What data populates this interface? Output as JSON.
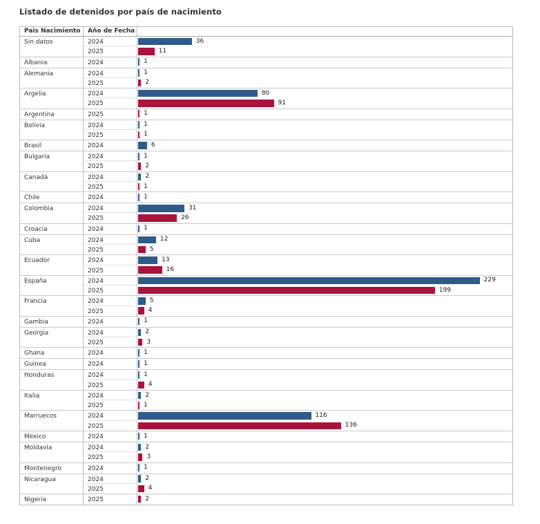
{
  "chart_data": {
    "type": "bar",
    "orientation": "horizontal",
    "title": "Listado de detenidos por país de nacimiento",
    "columns": [
      "Pais Nacimiento",
      "Año de Fecha"
    ],
    "legend": [
      "2024",
      "2025"
    ],
    "series_colors": {
      "2024": "#2e5b8a",
      "2025": "#a8143c"
    },
    "xlim": [
      0,
      250
    ],
    "grid": false,
    "value_labels": true,
    "groups": [
      {
        "country": "Sin datos",
        "rows": [
          {
            "year": "2024",
            "value": 36
          },
          {
            "year": "2025",
            "value": 11
          }
        ]
      },
      {
        "country": "Albania",
        "rows": [
          {
            "year": "2024",
            "value": 1
          }
        ]
      },
      {
        "country": "Alemania",
        "rows": [
          {
            "year": "2024",
            "value": 1
          },
          {
            "year": "2025",
            "value": 2
          }
        ]
      },
      {
        "country": "Argelia",
        "rows": [
          {
            "year": "2024",
            "value": 80
          },
          {
            "year": "2025",
            "value": 91
          }
        ]
      },
      {
        "country": "Argentina",
        "rows": [
          {
            "year": "2025",
            "value": 1
          }
        ]
      },
      {
        "country": "Bolivia",
        "rows": [
          {
            "year": "2024",
            "value": 1
          },
          {
            "year": "2025",
            "value": 1
          }
        ]
      },
      {
        "country": "Brasil",
        "rows": [
          {
            "year": "2024",
            "value": 6
          }
        ]
      },
      {
        "country": "Bulgaria",
        "rows": [
          {
            "year": "2024",
            "value": 1
          },
          {
            "year": "2025",
            "value": 2
          }
        ]
      },
      {
        "country": "Canadá",
        "rows": [
          {
            "year": "2024",
            "value": 2
          },
          {
            "year": "2025",
            "value": 1
          }
        ]
      },
      {
        "country": "Chile",
        "rows": [
          {
            "year": "2024",
            "value": 1
          }
        ]
      },
      {
        "country": "Colombia",
        "rows": [
          {
            "year": "2024",
            "value": 31
          },
          {
            "year": "2025",
            "value": 26
          }
        ]
      },
      {
        "country": "Croacia",
        "rows": [
          {
            "year": "2024",
            "value": 1
          }
        ]
      },
      {
        "country": "Cuba",
        "rows": [
          {
            "year": "2024",
            "value": 12
          },
          {
            "year": "2025",
            "value": 5
          }
        ]
      },
      {
        "country": "Ecuador",
        "rows": [
          {
            "year": "2024",
            "value": 13
          },
          {
            "year": "2025",
            "value": 16
          }
        ]
      },
      {
        "country": "España",
        "rows": [
          {
            "year": "2024",
            "value": 229
          },
          {
            "year": "2025",
            "value": 199
          }
        ]
      },
      {
        "country": "Francia",
        "rows": [
          {
            "year": "2024",
            "value": 5
          },
          {
            "year": "2025",
            "value": 4
          }
        ]
      },
      {
        "country": "Gambia",
        "rows": [
          {
            "year": "2024",
            "value": 1
          }
        ]
      },
      {
        "country": "Georgia",
        "rows": [
          {
            "year": "2024",
            "value": 2
          },
          {
            "year": "2025",
            "value": 3
          }
        ]
      },
      {
        "country": "Ghana",
        "rows": [
          {
            "year": "2024",
            "value": 1
          }
        ]
      },
      {
        "country": "Guinea",
        "rows": [
          {
            "year": "2024",
            "value": 1
          }
        ]
      },
      {
        "country": "Honduras",
        "rows": [
          {
            "year": "2024",
            "value": 1
          },
          {
            "year": "2025",
            "value": 4
          }
        ]
      },
      {
        "country": "Italia",
        "rows": [
          {
            "year": "2024",
            "value": 2
          },
          {
            "year": "2025",
            "value": 1
          }
        ]
      },
      {
        "country": "Marruecos",
        "rows": [
          {
            "year": "2024",
            "value": 116
          },
          {
            "year": "2025",
            "value": 136
          }
        ]
      },
      {
        "country": "México",
        "rows": [
          {
            "year": "2024",
            "value": 1
          }
        ]
      },
      {
        "country": "Moldavia",
        "rows": [
          {
            "year": "2024",
            "value": 2
          },
          {
            "year": "2025",
            "value": 3
          }
        ]
      },
      {
        "country": "Montenegro",
        "rows": [
          {
            "year": "2024",
            "value": 1
          }
        ]
      },
      {
        "country": "Nicaragua",
        "rows": [
          {
            "year": "2024",
            "value": 2
          },
          {
            "year": "2025",
            "value": 4
          }
        ]
      },
      {
        "country": "Nigeria",
        "rows": [
          {
            "year": "2025",
            "value": 2
          }
        ]
      }
    ]
  }
}
